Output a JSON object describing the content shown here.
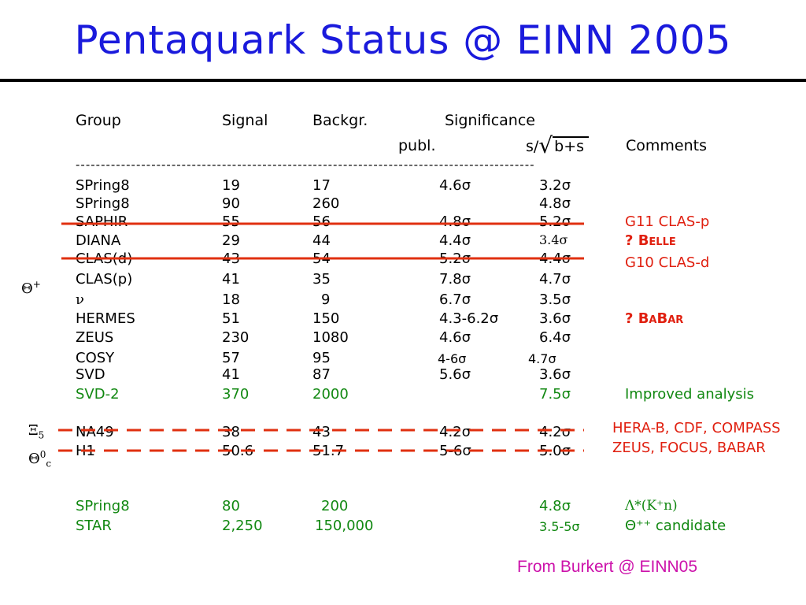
{
  "title": "Pentaquark Status @ EINN 2005",
  "headers": {
    "group": "Group",
    "signal": "Signal",
    "background": "Backgr.",
    "significance": "Significance",
    "publ": "publ.",
    "sqrt_num": "s/",
    "sqrt_den": "b+s",
    "comments": "Comments",
    "divider": "-------------------------------------------------------------------------------------------"
  },
  "side_labels": {
    "theta_plus": "Θ",
    "theta_plus_sup": "+",
    "xi": "Ξ",
    "xi_sub": "5",
    "theta_c": "Θ",
    "theta_c_sup": "0",
    "theta_c_sub": "c"
  },
  "rows": [
    {
      "group": "SPring8",
      "signal": "19",
      "background": "17",
      "publ": "4.6σ",
      "sig": "3.2σ",
      "comment": "",
      "color": "black"
    },
    {
      "group": "SPring8",
      "signal": "90",
      "background": "260",
      "publ": "",
      "sig": "4.8σ",
      "comment": "",
      "color": "black"
    },
    {
      "group": "SAPHIR",
      "signal": "55",
      "background": "56",
      "publ": "4.8σ",
      "sig": "5.2σ",
      "comment": "G11 CLAS-p",
      "comment_color": "red",
      "color": "black"
    },
    {
      "group": "DIANA",
      "signal": "29",
      "background": "44",
      "publ": "4.4σ",
      "sig": "3.4σ",
      "comment": "? Belle",
      "comment_color": "red",
      "color": "black"
    },
    {
      "group": "CLAS(d)",
      "signal": "43",
      "background": "54",
      "publ": "5.2σ",
      "sig": "4.4σ",
      "comment": "G10 CLAS-d",
      "comment_color": "red",
      "color": "black"
    },
    {
      "group": "CLAS(p)",
      "signal": "41",
      "background": "35",
      "publ": "7.8σ",
      "sig": "4.7σ",
      "comment": "",
      "color": "black"
    },
    {
      "group": "ν",
      "signal": "18",
      "background": "9",
      "publ": "6.7σ",
      "sig": "3.5σ",
      "comment": "",
      "color": "black"
    },
    {
      "group": "HERMES",
      "signal": "51",
      "background": "150",
      "publ": "4.3-6.2σ",
      "sig": "3.6σ",
      "comment": "? BaBar",
      "comment_color": "red",
      "color": "black"
    },
    {
      "group": "ZEUS",
      "signal": "230",
      "background": "1080",
      "publ": "4.6σ",
      "sig": "6.4σ",
      "comment": "",
      "color": "black"
    },
    {
      "group": "COSY",
      "signal": "57",
      "background": "95",
      "publ": "4-6σ",
      "sig": "4.7σ",
      "comment": "",
      "color": "black"
    },
    {
      "group": "SVD",
      "signal": "41",
      "background": "87",
      "publ": "5.6σ",
      "sig": "3.6σ",
      "comment": "",
      "color": "black"
    },
    {
      "group": "SVD-2",
      "signal": "370",
      "background": "2000",
      "publ": "",
      "sig": "7.5σ",
      "comment": "Improved analysis",
      "comment_color": "green",
      "color": "green"
    },
    {
      "group": "NA49",
      "signal": "38",
      "background": "43",
      "publ": "4.2σ",
      "sig": "4.2σ",
      "comment": "HERA-B, CDF, COMPASS",
      "comment_color": "red",
      "color": "black"
    },
    {
      "group": "H1",
      "signal": "50.6",
      "background": "51.7",
      "publ": "5-6σ",
      "sig": "5.0σ",
      "comment": "ZEUS, FOCUS, BABAR",
      "comment_color": "red",
      "color": "black"
    },
    {
      "group": "SPring8",
      "signal": "80",
      "background": "200",
      "publ": "",
      "sig": "4.8σ",
      "comment": "Λ*(K⁺n)",
      "comment_color": "green",
      "color": "green"
    },
    {
      "group": "STAR",
      "signal": "2,250",
      "background": "150,000",
      "publ": "",
      "sig": "3.5-5σ",
      "comment": "Θ⁺⁺ candidate",
      "comment_color": "green",
      "color": "green"
    }
  ],
  "footer": "From Burkert @ EINN05",
  "colors": {
    "title": "#1a1adc",
    "strike": "#e03010",
    "green": "#118811",
    "red": "#e02010",
    "footer": "#cc11aa"
  }
}
